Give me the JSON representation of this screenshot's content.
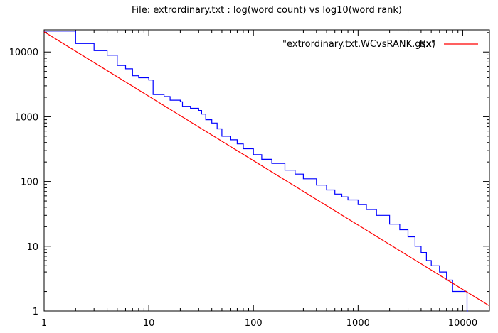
{
  "chart_data": {
    "type": "line",
    "title": "File: extrordinary.txt : log(word count) vs log10(word rank)",
    "xlabel": "",
    "ylabel": "",
    "x_scale": "log",
    "y_scale": "log",
    "xlim": [
      1,
      18000
    ],
    "ylim": [
      1,
      22000
    ],
    "x_ticks": [
      1,
      10,
      100,
      1000,
      10000
    ],
    "x_tick_labels": [
      "1",
      "10",
      "100",
      "1000",
      "10000"
    ],
    "y_ticks": [
      1,
      10,
      100,
      1000,
      10000
    ],
    "y_tick_labels": [
      "1",
      "10",
      "100",
      "1000",
      "10000"
    ],
    "grid": false,
    "legend_position": "top-right",
    "series": [
      {
        "name": "\"extrordinary.txt.WCvsRANK.gsx\"",
        "color": "#0000ff",
        "style": "steps",
        "points": [
          [
            1,
            21000
          ],
          [
            2,
            13500
          ],
          [
            3,
            10500
          ],
          [
            4,
            8900
          ],
          [
            5,
            6200
          ],
          [
            6,
            5500
          ],
          [
            7,
            4300
          ],
          [
            8,
            4000
          ],
          [
            10,
            3700
          ],
          [
            11,
            2200
          ],
          [
            14,
            2050
          ],
          [
            16,
            1800
          ],
          [
            20,
            1700
          ],
          [
            21,
            1450
          ],
          [
            25,
            1350
          ],
          [
            30,
            1250
          ],
          [
            32,
            1100
          ],
          [
            35,
            900
          ],
          [
            40,
            800
          ],
          [
            45,
            650
          ],
          [
            50,
            500
          ],
          [
            60,
            440
          ],
          [
            70,
            380
          ],
          [
            80,
            320
          ],
          [
            100,
            260
          ],
          [
            120,
            220
          ],
          [
            150,
            190
          ],
          [
            200,
            150
          ],
          [
            250,
            130
          ],
          [
            300,
            110
          ],
          [
            400,
            88
          ],
          [
            500,
            74
          ],
          [
            600,
            64
          ],
          [
            700,
            58
          ],
          [
            800,
            52
          ],
          [
            1000,
            44
          ],
          [
            1200,
            37
          ],
          [
            1500,
            30
          ],
          [
            2000,
            22
          ],
          [
            2500,
            18
          ],
          [
            3000,
            14
          ],
          [
            3500,
            10
          ],
          [
            4000,
            8
          ],
          [
            4500,
            6
          ],
          [
            5000,
            5
          ],
          [
            6000,
            4
          ],
          [
            7000,
            3
          ],
          [
            8000,
            2
          ],
          [
            10500,
            2
          ],
          [
            11000,
            1
          ],
          [
            11200,
            1
          ]
        ]
      },
      {
        "name": "f(x)",
        "color": "#ff0000",
        "style": "line",
        "points": [
          [
            1,
            20500
          ],
          [
            18000,
            1.2
          ]
        ]
      }
    ]
  }
}
